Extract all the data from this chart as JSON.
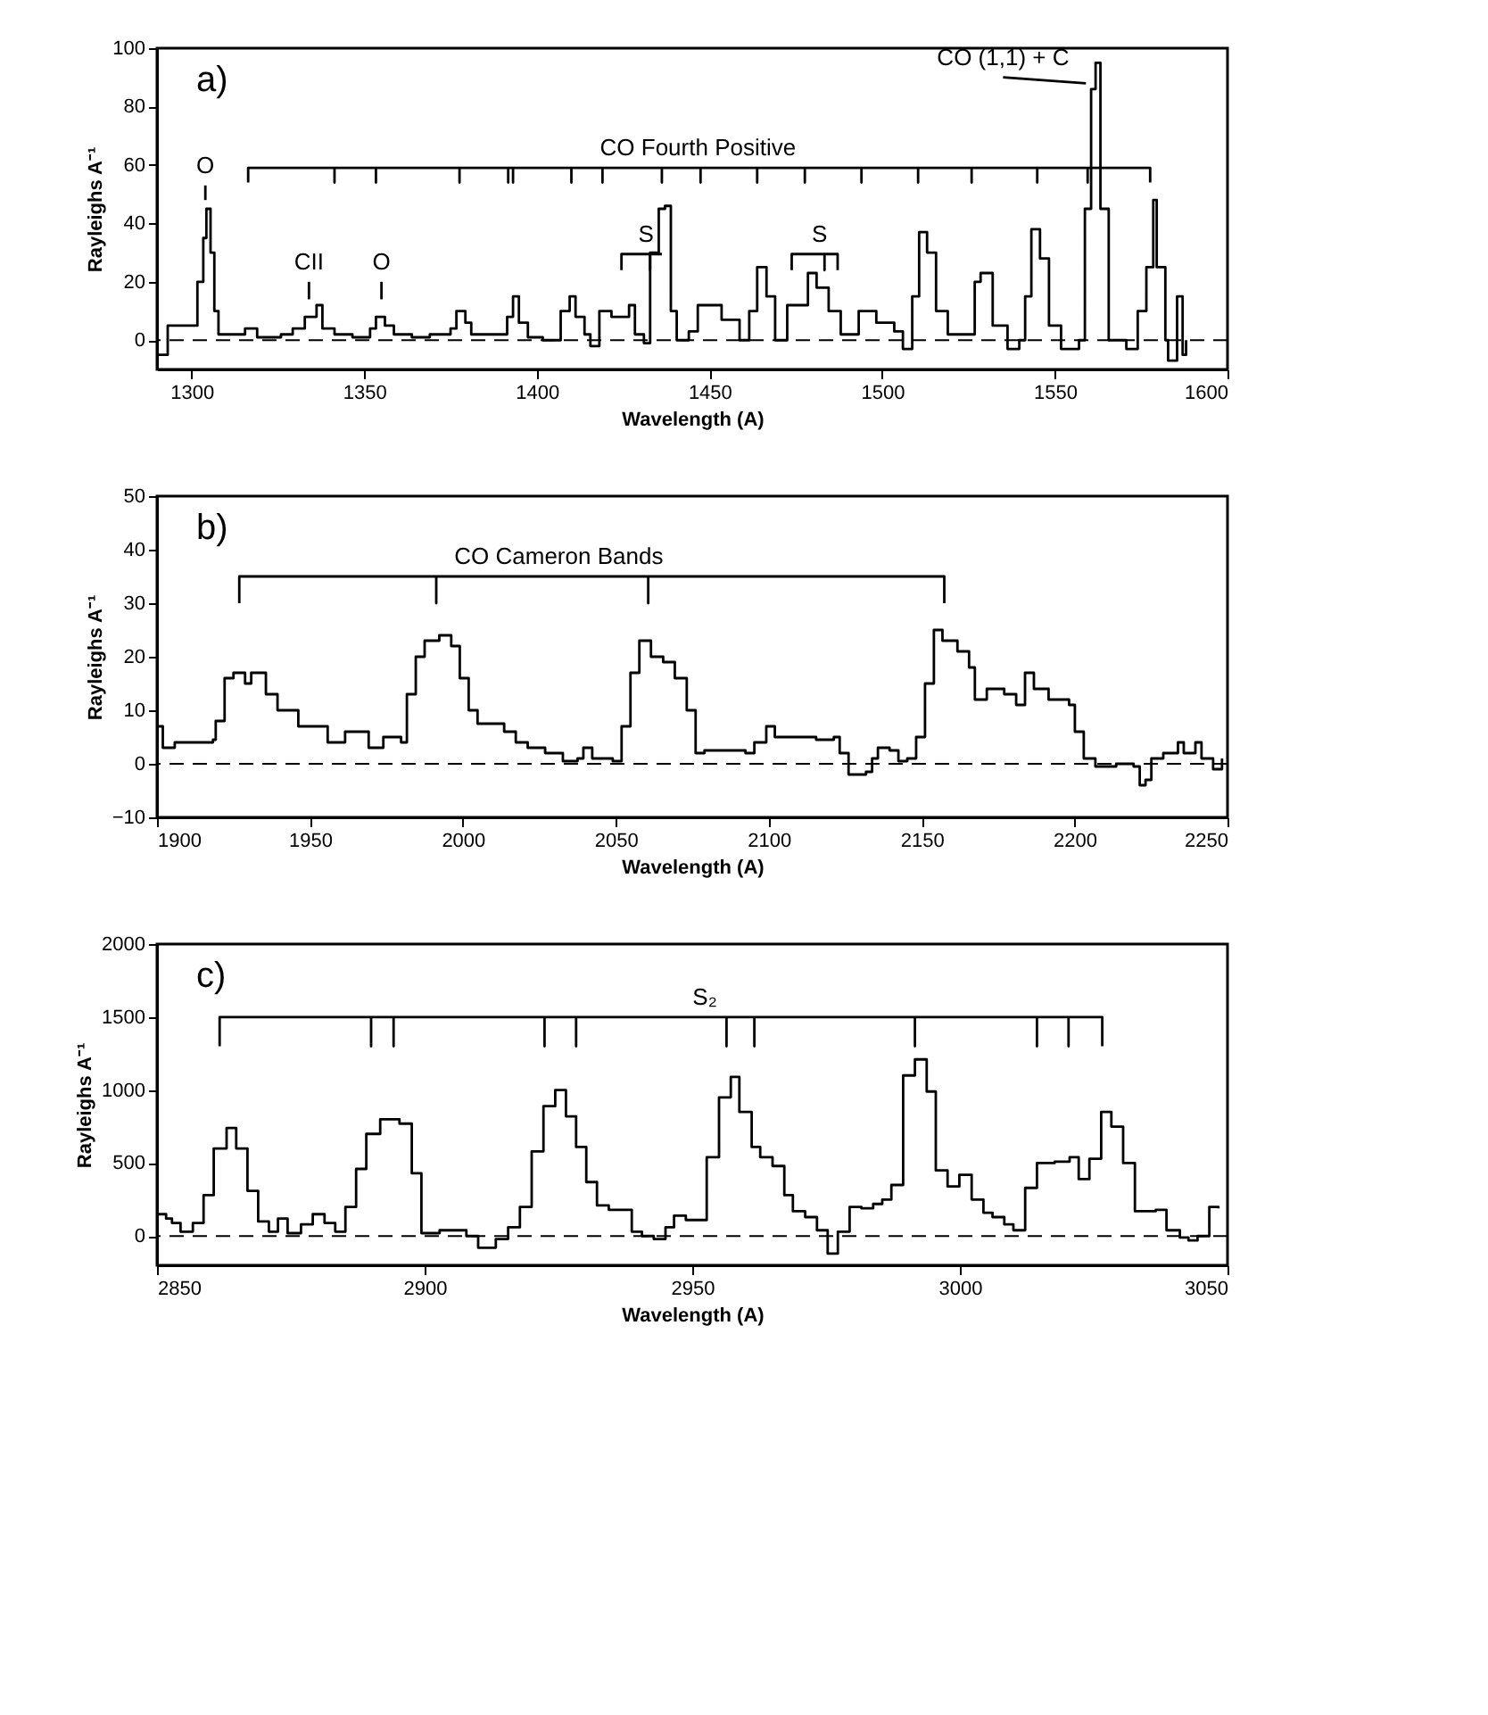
{
  "chart_data": [
    {
      "type": "step",
      "xlabel": "Wavelength (A)",
      "ylabel": "Rayleighs A⁻¹",
      "xlim": [
        1290,
        1600
      ],
      "ylim": [
        -10,
        100
      ],
      "xticks": [
        1300,
        1350,
        1400,
        1450,
        1500,
        1550,
        1600
      ],
      "yticks": [
        0,
        20,
        40,
        60,
        80,
        100
      ],
      "grid": false,
      "ref_lines": [
        {
          "axis": "y",
          "value": 0,
          "line_style": "dashed"
        }
      ],
      "annotations": [
        "a)"
      ],
      "series": [
        {
          "color": "#000000",
          "x": [
            1290,
            1293.1,
            1298.3,
            1301.7,
            1303.4,
            1304.3,
            1305.5,
            1306.6,
            1307.8,
            1315.5,
            1319,
            1325.9,
            1329.3,
            1332.8,
            1336.2,
            1337.9,
            1341.4,
            1346.6,
            1351.7,
            1353.4,
            1356,
            1358.6,
            1363.8,
            1369,
            1375,
            1376.7,
            1379.3,
            1381,
            1387.9,
            1391.4,
            1393.1,
            1394.8,
            1397.4,
            1401.7,
            1406.9,
            1409.5,
            1411.2,
            1413.8,
            1415.5,
            1418.1,
            1421.6,
            1426.7,
            1428.4,
            1431,
            1432.8,
            1435.3,
            1437.1,
            1438.8,
            1440.5,
            1444,
            1446.6,
            1453.5,
            1458.7,
            1461.5,
            1463.8,
            1466.5,
            1469,
            1472.5,
            1478.5,
            1481,
            1484.5,
            1488,
            1493.2,
            1498.3,
            1503.5,
            1506,
            1508.7,
            1510.7,
            1513,
            1515.6,
            1519,
            1523.3,
            1526.8,
            1528.5,
            1532,
            1536.3,
            1539.7,
            1541.4,
            1543.2,
            1545.7,
            1548.3,
            1551.8,
            1557,
            1558.7,
            1560.5,
            1561.8,
            1563.2,
            1565.6,
            1570.7,
            1574,
            1576.5,
            1578.5,
            1579.5,
            1582,
            1582.8,
            1585.4,
            1587,
            1588
          ],
          "values": [
            -5,
            5,
            5,
            20,
            35,
            45,
            30,
            10,
            2,
            4,
            1,
            2,
            4,
            8,
            12,
            4,
            2,
            1,
            4,
            8,
            5,
            2,
            1,
            2,
            4,
            10,
            6,
            2,
            2,
            8,
            15,
            6,
            1,
            0,
            10,
            15,
            8,
            2,
            -2,
            10,
            8,
            12,
            2,
            -1,
            30,
            45,
            46,
            10,
            0,
            3,
            12,
            7,
            0,
            10,
            25,
            15,
            0,
            12,
            23,
            18,
            10,
            2,
            10,
            6,
            3,
            -3,
            15,
            37,
            30,
            10,
            2,
            2,
            20,
            23,
            5,
            -3,
            0,
            15,
            38,
            28,
            5,
            -3,
            0,
            45,
            86,
            95,
            45,
            0,
            -3,
            10,
            25,
            48,
            25,
            0,
            -7,
            15,
            -5,
            0
          ]
        },
        {
          "type": "line",
          "name": "CO Fourth Positive",
          "color": "#000000",
          "x": [
            1316.4,
            1316.4,
            1341.4,
            1341.4,
            1341.4,
            1353.4,
            1353.4,
            1353.4,
            1377.6,
            1377.6,
            1377.6,
            1391.7,
            1391.7,
            1391.7,
            1393.1,
            1393.1,
            1393.1,
            1410,
            1410,
            1410,
            1419,
            1419,
            1419,
            1436.2,
            1436.2,
            1436.2,
            1447.4,
            1447.4,
            1447.4,
            1463.8,
            1463.8,
            1463.8,
            1477.6,
            1477.6,
            1477.6,
            1494,
            1494,
            1494,
            1510.4,
            1510.4,
            1510.4,
            1525.9,
            1525.9,
            1525.9,
            1544.9,
            1544.9,
            1544.9,
            1559.5,
            1559.5,
            1559.5,
            1577.6,
            1577.6
          ],
          "values": [
            54,
            59,
            59,
            54,
            59,
            59,
            54,
            59,
            59,
            54,
            59,
            59,
            54,
            59,
            59,
            54,
            59,
            59,
            54,
            59,
            59,
            54,
            59,
            59,
            54,
            59,
            59,
            54,
            59,
            59,
            54,
            59,
            59,
            54,
            59,
            59,
            54,
            59,
            59,
            54,
            59,
            59,
            54,
            59,
            59,
            54,
            59,
            59,
            54,
            59,
            59,
            54
          ]
        },
        {
          "type": "line",
          "name": "O",
          "color": "#000000",
          "x": [
            1304,
            1304
          ],
          "values": [
            48,
            53
          ]
        },
        {
          "type": "line",
          "name": "CII",
          "color": "#000000",
          "x": [
            1334,
            1334
          ],
          "values": [
            14,
            20
          ]
        },
        {
          "type": "line",
          "name": "O",
          "color": "#000000",
          "x": [
            1355,
            1355
          ],
          "values": [
            14,
            20
          ]
        },
        {
          "type": "line",
          "name": "S",
          "color": "#000000",
          "x": [
            1424.5,
            1424.5,
            1432.8,
            1432.8,
            1432.8,
            1436.2
          ],
          "values": [
            24,
            29.5,
            29.5,
            24,
            29.5,
            29.5
          ]
        },
        {
          "type": "line",
          "name": "S",
          "color": "#000000",
          "x": [
            1473.8,
            1473.8,
            1483.3,
            1483.3,
            1483.3,
            1487.1,
            1487.1
          ],
          "values": [
            24,
            29.5,
            29.5,
            24,
            29.5,
            29.5,
            24
          ]
        },
        {
          "type": "line",
          "name": "CO (1,1) + C",
          "color": "#000000",
          "x": [
            1535,
            1559
          ],
          "values": [
            90,
            88
          ]
        }
      ]
    },
    {
      "type": "step",
      "xlabel": "Wavelength (A)",
      "ylabel": "Rayleighs A⁻¹",
      "xlim": [
        1900,
        2250
      ],
      "ylim": [
        -10,
        50
      ],
      "xticks": [
        1900,
        1950,
        2000,
        2050,
        2100,
        2150,
        2200,
        2250
      ],
      "yticks": [
        -10,
        0,
        10,
        20,
        30,
        40,
        50
      ],
      "grid": false,
      "ref_lines": [
        {
          "axis": "y",
          "value": 0,
          "line_style": "dashed"
        }
      ],
      "annotations": [
        "b)"
      ],
      "series": [
        {
          "color": "#000000",
          "x": [
            1900,
            1901.9,
            1905.8,
            1918.3,
            1919.2,
            1922.1,
            1925,
            1928.8,
            1930.8,
            1933.7,
            1935.6,
            1939.4,
            1943.3,
            1946.2,
            1951.9,
            1955.8,
            1960.6,
            1961.5,
            1968.3,
            1969.2,
            1974,
            1979.8,
            1981.7,
            1984.6,
            1987.5,
            1992.3,
            1996.2,
            1999,
            2001.9,
            2004.8,
            2013.5,
            2017.3,
            2021.2,
            2026.9,
            2032.7,
            2037.5,
            2039.4,
            2042.3,
            2049,
            2051.9,
            2054.8,
            2057.7,
            2061.5,
            2065.5,
            2069.3,
            2073.2,
            2076.1,
            2079,
            2084.7,
            2092.4,
            2095.3,
            2099.2,
            2102,
            2109.7,
            2115.5,
            2121.3,
            2123.2,
            2126.1,
            2131.8,
            2133.8,
            2135.7,
            2139.5,
            2142.4,
            2145.3,
            2148.2,
            2151.1,
            2154,
            2156.8,
            2161.7,
            2165.5,
            2167.4,
            2171.3,
            2177,
            2180.9,
            2183.8,
            2186.7,
            2191.5,
            2198.2,
            2200.1,
            2203,
            2206.8,
            2213.6,
            2219.3,
            2221.3,
            2223.2,
            2225.1,
            2229,
            2233.8,
            2235.7,
            2239.5,
            2241.5,
            2245.3,
            2248.2
          ],
          "values": [
            7,
            3,
            4,
            4.5,
            8,
            16,
            17,
            15,
            17,
            17,
            13,
            10,
            10,
            7,
            7,
            4,
            4,
            6,
            6,
            3,
            5,
            4,
            13,
            20,
            23,
            24,
            22,
            16,
            10,
            7.5,
            6,
            4,
            3,
            2,
            0.5,
            1,
            3,
            1,
            0.5,
            7,
            17,
            23,
            20,
            19,
            16,
            10,
            2,
            2.5,
            2.5,
            2,
            4,
            7,
            5,
            5,
            4.5,
            5,
            2,
            -2,
            -1.5,
            1,
            3,
            2.5,
            0.5,
            1,
            5,
            15,
            25,
            23,
            21,
            18,
            12,
            14,
            13,
            11,
            17,
            14,
            12,
            11,
            6,
            1,
            -0.5,
            0,
            -0.5,
            -4,
            -3,
            1,
            2,
            4,
            2,
            4,
            1,
            -1,
            1
          ]
        },
        {
          "type": "line",
          "name": "CO Cameron Bands",
          "color": "#000000",
          "x": [
            1926.9,
            1926.9,
            1991.3,
            1991.3,
            1991.3,
            2060.6,
            2060.6,
            2060.6,
            2157.4,
            2157.4
          ],
          "values": [
            30,
            35,
            35,
            30,
            35,
            35,
            30,
            35,
            35,
            30
          ]
        }
      ]
    },
    {
      "type": "step",
      "xlabel": "Wavelength (A)",
      "ylabel": "Rayleighs A⁻¹",
      "xlim": [
        2850,
        3050
      ],
      "ylim": [
        -200,
        2000
      ],
      "xticks": [
        2850,
        2900,
        2950,
        3000,
        3050
      ],
      "yticks": [
        0,
        500,
        1000,
        1500,
        2000
      ],
      "grid": false,
      "ref_lines": [
        {
          "axis": "y",
          "value": 0,
          "line_style": "dashed"
        }
      ],
      "annotations": [
        "c)"
      ],
      "series": [
        {
          "color": "#000000",
          "x": [
            2850,
            2851.7,
            2852.8,
            2854.4,
            2856.7,
            2858.7,
            2860.6,
            2863,
            2864.8,
            2866.9,
            2868.9,
            2870.9,
            2872.6,
            2874.4,
            2876.9,
            2879.1,
            2881.3,
            2883.3,
            2885.2,
            2887.2,
            2889.1,
            2891.7,
            2895.3,
            2897.6,
            2899.4,
            2902.8,
            2907.8,
            2910,
            2913.3,
            2915.6,
            2917.8,
            2920,
            2922.2,
            2924.4,
            2926.4,
            2928.3,
            2930.2,
            2932.2,
            2934.4,
            2938.7,
            2940.6,
            2942.8,
            2945,
            2946.6,
            2948.8,
            2952.7,
            2955,
            2957.2,
            2958.8,
            2961.1,
            2962.7,
            2965,
            2967.2,
            2968.8,
            2971.1,
            2973.3,
            2975.3,
            2977.2,
            2979.4,
            2981.6,
            2983.8,
            2985.5,
            2987.2,
            2989.4,
            2991.6,
            2993.8,
            2995.5,
            2997.7,
            2999.9,
            3002.2,
            3004.4,
            3006.1,
            3008.3,
            3010,
            3012.2,
            3014.4,
            3017.7,
            3020.5,
            3022.2,
            3024.2,
            3026.4,
            3028.3,
            3030.5,
            3032.7,
            3036.6,
            3038.6,
            3041.1,
            3042.7,
            3044.4,
            3046.6,
            3048.3
          ],
          "values": [
            150,
            120,
            90,
            30,
            90,
            280,
            600,
            740,
            600,
            310,
            100,
            30,
            120,
            20,
            80,
            150,
            90,
            30,
            200,
            460,
            700,
            800,
            770,
            430,
            20,
            40,
            0,
            -80,
            -20,
            60,
            200,
            580,
            890,
            1000,
            820,
            610,
            370,
            210,
            180,
            30,
            0,
            -20,
            60,
            140,
            110,
            540,
            950,
            1090,
            850,
            610,
            540,
            480,
            280,
            170,
            130,
            40,
            -120,
            30,
            200,
            190,
            220,
            250,
            350,
            1100,
            1210,
            990,
            450,
            340,
            420,
            250,
            160,
            130,
            80,
            40,
            330,
            500,
            510,
            540,
            390,
            530,
            850,
            750,
            500,
            170,
            180,
            40,
            -10,
            -30,
            0,
            200,
            190
          ]
        },
        {
          "type": "line",
          "name": "S₂",
          "color": "#000000",
          "x": [
            2861.7,
            2861.7,
            2890,
            2890,
            2890,
            2894.2,
            2894.2,
            2894.2,
            2922.4,
            2922.4,
            2922.4,
            2928.3,
            2928.3,
            2928.3,
            2956.4,
            2956.4,
            2956.4,
            2961.6,
            2961.6,
            2961.6,
            2991.6,
            2991.6,
            2991.6,
            3014.4,
            3014.4,
            3014.4,
            3020.3,
            3020.3,
            3020.3,
            3026.6,
            3026.6
          ],
          "values": [
            1300,
            1500,
            1500,
            1300,
            1500,
            1500,
            1300,
            1500,
            1500,
            1300,
            1500,
            1500,
            1300,
            1500,
            1500,
            1300,
            1500,
            1500,
            1300,
            1500,
            1500,
            1300,
            1500,
            1500,
            1300,
            1500,
            1500,
            1300,
            1500,
            1500,
            1300
          ]
        }
      ]
    }
  ]
}
